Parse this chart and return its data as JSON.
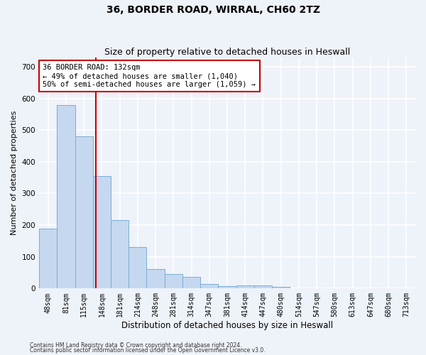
{
  "title": "36, BORDER ROAD, WIRRAL, CH60 2TZ",
  "subtitle": "Size of property relative to detached houses in Heswall",
  "xlabel": "Distribution of detached houses by size in Heswall",
  "ylabel": "Number of detached properties",
  "bin_labels": [
    "48sqm",
    "81sqm",
    "115sqm",
    "148sqm",
    "181sqm",
    "214sqm",
    "248sqm",
    "281sqm",
    "314sqm",
    "347sqm",
    "381sqm",
    "414sqm",
    "447sqm",
    "480sqm",
    "514sqm",
    "547sqm",
    "580sqm",
    "613sqm",
    "647sqm",
    "680sqm",
    "713sqm"
  ],
  "bar_values": [
    190,
    580,
    480,
    355,
    215,
    130,
    62,
    45,
    36,
    15,
    8,
    10,
    10,
    5,
    1,
    0,
    0,
    0,
    0,
    0,
    0
  ],
  "bar_color": "#c5d8f0",
  "bar_edge_color": "#7aaed4",
  "vline_x": 2.67,
  "vline_color": "#cc0000",
  "annotation_line1": "36 BORDER ROAD: 132sqm",
  "annotation_line2": "← 49% of detached houses are smaller (1,040)",
  "annotation_line3": "50% of semi-detached houses are larger (1,059) →",
  "annotation_box_color": "#cc0000",
  "ylim": [
    0,
    730
  ],
  "yticks": [
    0,
    100,
    200,
    300,
    400,
    500,
    600,
    700
  ],
  "footer1": "Contains HM Land Registry data © Crown copyright and database right 2024.",
  "footer2": "Contains public sector information licensed under the Open Government Licence v3.0.",
  "background_color": "#eef2f9",
  "grid_color": "#ffffff",
  "title_fontsize": 10,
  "subtitle_fontsize": 9,
  "ylabel_fontsize": 8,
  "xlabel_fontsize": 8.5,
  "tick_fontsize": 7,
  "annot_fontsize": 7.5,
  "footer_fontsize": 5.5
}
